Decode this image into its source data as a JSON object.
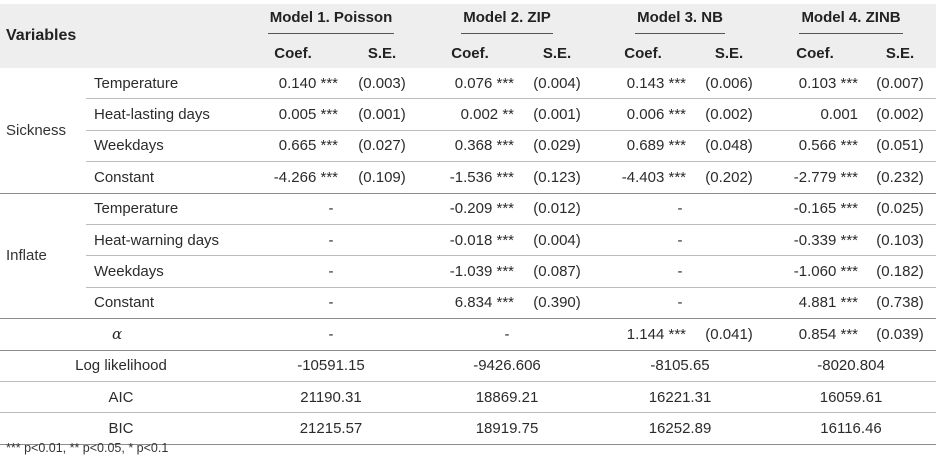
{
  "header": {
    "variables": "Variables",
    "models": [
      "Model 1. Poisson",
      "Model 2. ZIP",
      "Model 3. NB",
      "Model 4. ZINB"
    ],
    "coef": "Coef.",
    "se": "S.E."
  },
  "groups": [
    {
      "name": "Sickness",
      "rows": [
        {
          "var": "Temperature",
          "cells": [
            [
              "0.140 ***",
              "(0.003)"
            ],
            [
              "0.076 ***",
              "(0.004)"
            ],
            [
              "0.143 ***",
              "(0.006)"
            ],
            [
              "0.103 ***",
              "(0.007)"
            ]
          ]
        },
        {
          "var": "Heat-lasting days",
          "cells": [
            [
              "0.005 ***",
              "(0.001)"
            ],
            [
              "0.002 **",
              "(0.001)"
            ],
            [
              "0.006 ***",
              "(0.002)"
            ],
            [
              "0.001",
              "(0.002)"
            ]
          ]
        },
        {
          "var": "Weekdays",
          "cells": [
            [
              "0.665 ***",
              "(0.027)"
            ],
            [
              "0.368 ***",
              "(0.029)"
            ],
            [
              "0.689 ***",
              "(0.048)"
            ],
            [
              "0.566 ***",
              "(0.051)"
            ]
          ]
        },
        {
          "var": "Constant",
          "cells": [
            [
              "-4.266 ***",
              "(0.109)"
            ],
            [
              "-1.536 ***",
              "(0.123)"
            ],
            [
              "-4.403 ***",
              "(0.202)"
            ],
            [
              "-2.779 ***",
              "(0.232)"
            ]
          ]
        }
      ]
    },
    {
      "name": "Inflate",
      "rows": [
        {
          "var": "Temperature",
          "cells": [
            [
              "-",
              ""
            ],
            [
              "-0.209 ***",
              "(0.012)"
            ],
            [
              "-",
              ""
            ],
            [
              "-0.165 ***",
              "(0.025)"
            ]
          ]
        },
        {
          "var": "Heat-warning days",
          "cells": [
            [
              "-",
              ""
            ],
            [
              "-0.018 ***",
              "(0.004)"
            ],
            [
              "-",
              ""
            ],
            [
              "-0.339 ***",
              "(0.103)"
            ]
          ]
        },
        {
          "var": "Weekdays",
          "cells": [
            [
              "-",
              ""
            ],
            [
              "-1.039 ***",
              "(0.087)"
            ],
            [
              "-",
              ""
            ],
            [
              "-1.060 ***",
              "(0.182)"
            ]
          ]
        },
        {
          "var": "Constant",
          "cells": [
            [
              "-",
              ""
            ],
            [
              "6.834 ***",
              "(0.390)"
            ],
            [
              "-",
              ""
            ],
            [
              "4.881 ***",
              "(0.738)"
            ]
          ]
        }
      ]
    }
  ],
  "alpha_row": {
    "label": "α",
    "cells": [
      [
        "-",
        ""
      ],
      [
        "-",
        ""
      ],
      [
        "1.144 ***",
        "(0.041)"
      ],
      [
        "0.854 ***",
        "(0.039)"
      ]
    ]
  },
  "summary": [
    {
      "label": "Log likelihood",
      "values": [
        "-10591.15",
        "-9426.606",
        "-8105.65",
        "-8020.804"
      ]
    },
    {
      "label": "AIC",
      "values": [
        "21190.31",
        "18869.21",
        "16221.31",
        "16059.61"
      ]
    },
    {
      "label": "BIC",
      "values": [
        "21215.57",
        "18919.75",
        "16252.89",
        "16116.46"
      ]
    }
  ],
  "note": "*** p<0.01, ** p<0.05, * p<0.1"
}
